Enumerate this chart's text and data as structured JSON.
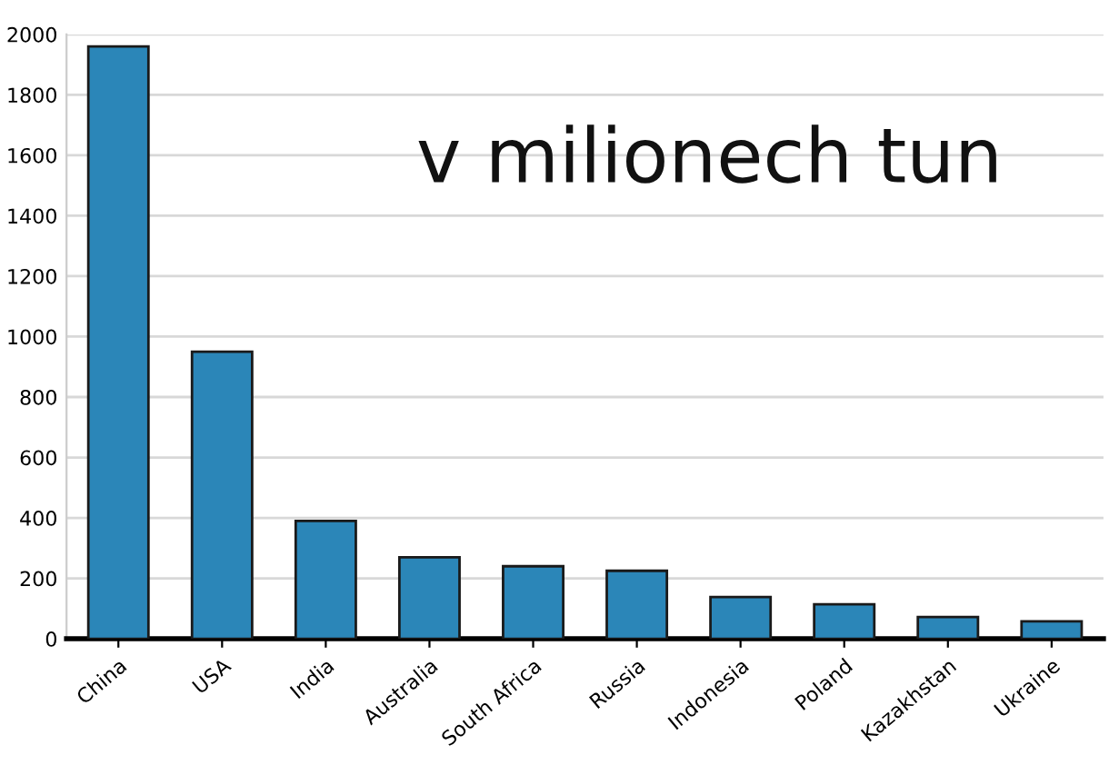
{
  "chart_data": {
    "type": "bar",
    "categories": [
      "China",
      "USA",
      "India",
      "Australia",
      "South Africa",
      "Russia",
      "Indonesia",
      "Poland",
      "Kazakhstan",
      "Ukraine"
    ],
    "values": [
      1960,
      950,
      390,
      270,
      240,
      225,
      138,
      114,
      72,
      58
    ],
    "color": "#2b86b8",
    "ylim": [
      0,
      2000
    ],
    "yticks": [
      0,
      200,
      400,
      600,
      800,
      1000,
      1200,
      1400,
      1600,
      1800,
      2000
    ],
    "grid": "y",
    "annotations": [
      "v milionech tun"
    ]
  }
}
